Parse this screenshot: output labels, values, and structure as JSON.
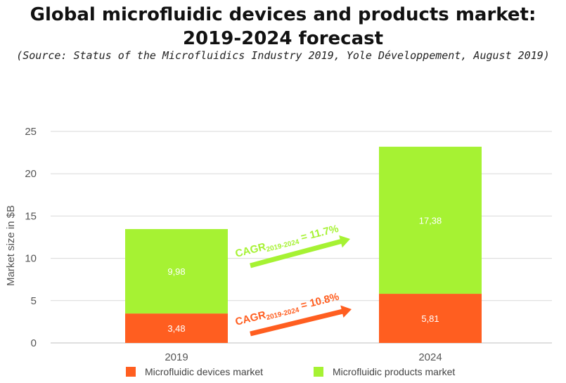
{
  "header": {
    "title_line1": "Global microfluidic devices and products market:",
    "title_line2": "2019-2024 forecast",
    "source": "(Source: Status of the Microfluidics Industry 2019, Yole Développement, August 2019)"
  },
  "chart_data": {
    "type": "bar",
    "stacked": true,
    "categories": [
      "2019",
      "2024"
    ],
    "series": [
      {
        "name": "Microfluidic devices market",
        "values": [
          3.48,
          5.81
        ],
        "labels": [
          "3,48",
          "5,81"
        ],
        "color": "#ff5e20"
      },
      {
        "name": "Microfluidic products market",
        "values": [
          9.98,
          17.38
        ],
        "labels": [
          "9,98",
          "17,38"
        ],
        "color": "#a6f233"
      }
    ],
    "ylabel": "Market size in $B",
    "ylim": [
      0,
      25
    ],
    "yticks": [
      0,
      5,
      10,
      15,
      20,
      25
    ],
    "grid": true,
    "legend_position": "bottom",
    "annotations": [
      {
        "prefix": "CAGR",
        "subscript": "2019-2024",
        "suffix": " = 11.7%",
        "color": "#a6f233",
        "series": "Microfluidic products market"
      },
      {
        "prefix": "CAGR",
        "subscript": "2019-2024",
        "suffix": " = 10.8%",
        "color": "#ff5e20",
        "series": "Microfluidic devices market"
      }
    ]
  }
}
